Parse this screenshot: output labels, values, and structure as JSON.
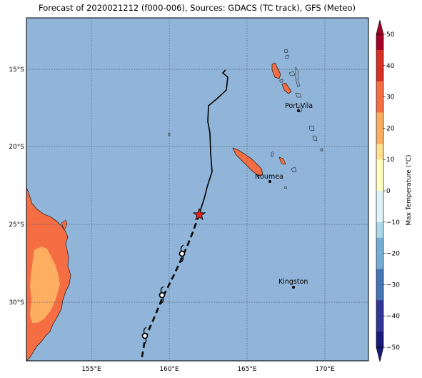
{
  "title": "Forecast of 2020021212 (f000-006), Sources: GDACS (TC track), GFS (Meteo)",
  "lat_ticks": [
    "15°S",
    "20°S",
    "25°S",
    "30°S"
  ],
  "lon_ticks": [
    "155°E",
    "160°E",
    "165°E",
    "170°E"
  ],
  "places": [
    {
      "name": "Port-Vila"
    },
    {
      "name": "Noumea"
    },
    {
      "name": "Kingston"
    }
  ],
  "colorbar": {
    "label": "Max Temperature (°C)",
    "ticks": [
      "50",
      "40",
      "30",
      "20",
      "10",
      "0",
      "−10",
      "−20",
      "−30",
      "−40",
      "−50"
    ],
    "colors": [
      "#a50026",
      "#d73027",
      "#f46d43",
      "#fdae61",
      "#fee090",
      "#ffffbf",
      "#e0f3f8",
      "#abd9e9",
      "#74add1",
      "#4575b4",
      "#313695",
      "#1a1a7a"
    ]
  },
  "colors": {
    "ocean": "#91b5d8",
    "land_hot": "#f46d43",
    "land_warm": "#fdae61",
    "grid": "#4a5a78",
    "storm_marker": "#e8261c"
  }
}
